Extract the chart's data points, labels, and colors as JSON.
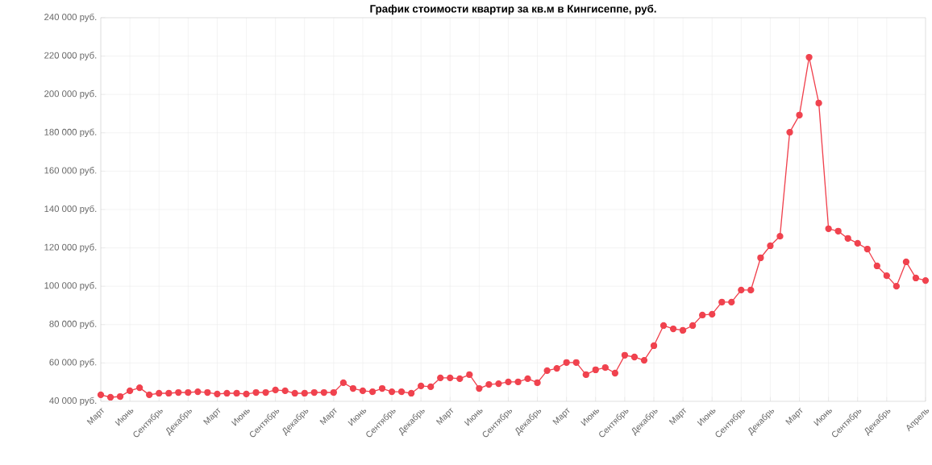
{
  "chart_data": {
    "type": "line",
    "title": "График стоимости квартир за кв.м в Кингисеппе, руб.",
    "categories": [
      "Март",
      null,
      null,
      "Июнь",
      null,
      null,
      "Сентябрь",
      null,
      null,
      "Декабрь",
      null,
      null,
      "Март",
      null,
      null,
      "Июнь",
      null,
      null,
      "Сентябрь",
      null,
      null,
      "Декабрь",
      null,
      null,
      "Март",
      null,
      null,
      "Июнь",
      null,
      null,
      "Сентябрь",
      null,
      null,
      "Декабрь",
      null,
      null,
      "Март",
      null,
      null,
      "Июнь",
      null,
      null,
      "Сентябрь",
      null,
      null,
      "Декабрь",
      null,
      null,
      "Март",
      null,
      null,
      "Июнь",
      null,
      null,
      "Сентябрь",
      null,
      null,
      "Декабрь",
      null,
      null,
      "Март",
      null,
      null,
      "Июнь",
      null,
      null,
      "Сентябрь",
      null,
      null,
      "Декабрь",
      null,
      null,
      "Март",
      null,
      null,
      "Июнь",
      null,
      null,
      "Сентябрь",
      null,
      null,
      "Декабрь",
      null,
      null,
      null,
      "Апрель"
    ],
    "values": [
      43400,
      42100,
      42500,
      45500,
      47100,
      43400,
      44200,
      44200,
      44600,
      44600,
      45000,
      44600,
      43800,
      44200,
      44200,
      43800,
      44600,
      44600,
      45900,
      45500,
      44200,
      44200,
      44600,
      44600,
      44600,
      49700,
      46700,
      45500,
      45000,
      46700,
      45000,
      45000,
      44200,
      48000,
      47600,
      52200,
      52200,
      51800,
      53900,
      46700,
      48800,
      49200,
      50100,
      50100,
      51800,
      49700,
      56000,
      57200,
      60200,
      60200,
      53900,
      56400,
      57600,
      54700,
      64000,
      63100,
      61400,
      69000,
      79500,
      77800,
      77000,
      79500,
      85000,
      85400,
      91700,
      91700,
      98000,
      98000,
      114800,
      121100,
      126100,
      180300,
      189200,
      219400,
      195500,
      130000,
      128700,
      124900,
      122400,
      119400,
      110600,
      105500,
      100000,
      112700,
      104300,
      103000
    ],
    "color": "#f0424e",
    "marker": "circle",
    "grid": true,
    "ylim": [
      40000,
      240000
    ],
    "yticks": [
      {
        "value": 40000,
        "label": "40 000 руб."
      },
      {
        "value": 60000,
        "label": "60 000 руб."
      },
      {
        "value": 80000,
        "label": "80 000 руб."
      },
      {
        "value": 100000,
        "label": "100 000 руб."
      },
      {
        "value": 120000,
        "label": "120 000 руб."
      },
      {
        "value": 140000,
        "label": "140 000 руб."
      },
      {
        "value": 160000,
        "label": "160 000 руб."
      },
      {
        "value": 180000,
        "label": "180 000 руб."
      },
      {
        "value": 200000,
        "label": "200 000 руб."
      },
      {
        "value": 220000,
        "label": "220 000 руб."
      },
      {
        "value": 240000,
        "label": "240 000 руб."
      }
    ]
  }
}
